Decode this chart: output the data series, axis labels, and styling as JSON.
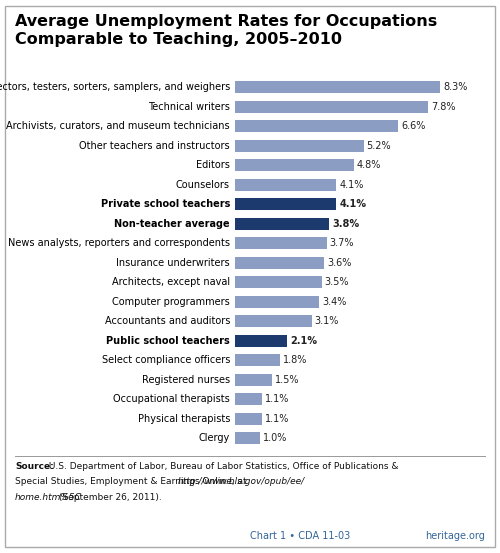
{
  "title": "Average Unemployment Rates for Occupations\nComparable to Teaching, 2005–2010",
  "categories": [
    "Inspectors, testers, sorters, samplers, and weighers",
    "Technical writers",
    "Archivists, curators, and museum technicians",
    "Other teachers and instructors",
    "Editors",
    "Counselors",
    "Private school teachers",
    "Non-teacher average",
    "News analysts, reporters and correspondents",
    "Insurance underwriters",
    "Architects, except naval",
    "Computer programmers",
    "Accountants and auditors",
    "Public school teachers",
    "Select compliance officers",
    "Registered nurses",
    "Occupational therapists",
    "Physical therapists",
    "Clergy"
  ],
  "values": [
    8.3,
    7.8,
    6.6,
    5.2,
    4.8,
    4.1,
    4.1,
    3.8,
    3.7,
    3.6,
    3.5,
    3.4,
    3.1,
    2.1,
    1.8,
    1.5,
    1.1,
    1.1,
    1.0
  ],
  "labels": [
    "8.3%",
    "7.8%",
    "6.6%",
    "5.2%",
    "4.8%",
    "4.1%",
    "4.1%",
    "3.8%",
    "3.7%",
    "3.6%",
    "3.5%",
    "3.4%",
    "3.1%",
    "2.1%",
    "1.8%",
    "1.5%",
    "1.1%",
    "1.1%",
    "1.0%"
  ],
  "bold_indices": [
    6,
    7,
    13
  ],
  "dark_blue_indices": [
    6,
    7,
    13
  ],
  "light_blue_color": "#8b9dc3",
  "dark_blue_color": "#1c3a6e",
  "bar_text_color": "#222222",
  "title_color": "#000000",
  "background_color": "#ffffff",
  "footer_color": "#336699",
  "footer_text": "Chart 1 • CDA 11-03",
  "footer_right": "heritage.org",
  "xlim": [
    0,
    9.5
  ]
}
